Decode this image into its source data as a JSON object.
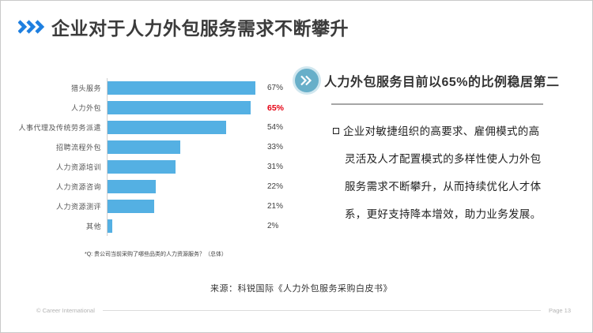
{
  "slide": {
    "title": "企业对于人力外包服务需求不断攀升",
    "copyright": "© Career International",
    "page_label": "Page 13",
    "source": "来源：科锐国际《人力外包服务采购白皮书》"
  },
  "chart_data": {
    "type": "bar",
    "orientation": "horizontal",
    "categories": [
      "猎头服务",
      "人力外包",
      "人事代理及传统劳务派遣",
      "招聘流程外包",
      "人力资源培训",
      "人力资源咨询",
      "人力资源测评",
      "其他"
    ],
    "values": [
      67,
      65,
      54,
      33,
      31,
      22,
      21,
      2
    ],
    "value_labels": [
      "67%",
      "65%",
      "54%",
      "33%",
      "31%",
      "22%",
      "21%",
      "2%"
    ],
    "highlight_index": 1,
    "xlim": [
      0,
      70
    ],
    "grid": false,
    "legend": "none",
    "bar_color": "#54b0e3",
    "highlight_value_color": "#e60012",
    "question_note": "*Q: 贵公司当前采购了哪些品类的人力资源服务？（总体）"
  },
  "right_panel": {
    "heading": "人力外包服务目前以65%的比例稳居第二",
    "body": "企业对敏捷组织的高要求、雇佣模式的高灵活及人才配置模式的多样性使人力外包服务需求不断攀升，从而持续优化人才体系，更好支持降本增效，助力业务发展。"
  },
  "colors": {
    "title_chevron_blue": "#1e7fe0",
    "bar_blue": "#54b0e3",
    "highlight_red": "#e60012",
    "circle_icon_teal": "#68afc9",
    "title_text": "#3b3b3b",
    "footer_gray": "#b3b3b3"
  }
}
